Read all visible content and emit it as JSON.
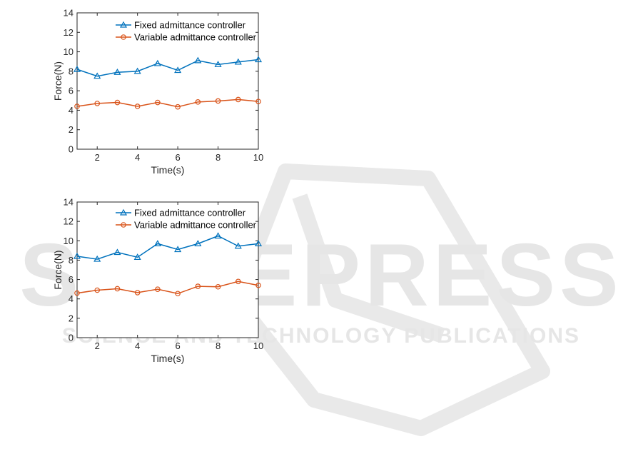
{
  "watermark": {
    "title": "SCITEPRESS",
    "subtitle": "SCIENCE AND TECHNOLOGY PUBLICATIONS",
    "color": "#e6e6e6"
  },
  "colors": {
    "fixed": "#0072bd",
    "variable": "#d95319",
    "axis": "#262626"
  },
  "chart_data": [
    {
      "type": "line",
      "xlabel": "Time(s)",
      "ylabel": "Force(N)",
      "xlim": [
        1,
        10
      ],
      "ylim": [
        0,
        14
      ],
      "xticks": [
        2,
        4,
        6,
        8,
        10
      ],
      "yticks": [
        0,
        2,
        4,
        6,
        8,
        10,
        12,
        14
      ],
      "grid": false,
      "legend_position": "top-right",
      "x": [
        1,
        2,
        3,
        4,
        5,
        6,
        7,
        8,
        9,
        10
      ],
      "series": [
        {
          "name": "Fixed admittance controller",
          "marker": "triangle",
          "values": [
            8.2,
            7.5,
            7.9,
            8.0,
            8.8,
            8.1,
            9.1,
            8.7,
            8.95,
            9.2
          ]
        },
        {
          "name": "Variable admittance controller",
          "marker": "circle",
          "values": [
            4.4,
            4.7,
            4.8,
            4.4,
            4.8,
            4.35,
            4.85,
            4.95,
            5.1,
            4.9
          ]
        }
      ]
    },
    {
      "type": "line",
      "xlabel": "Time(s)",
      "ylabel": "Force(N)",
      "xlim": [
        1,
        10
      ],
      "ylim": [
        0,
        14
      ],
      "xticks": [
        2,
        4,
        6,
        8,
        10
      ],
      "yticks": [
        0,
        2,
        4,
        6,
        8,
        10,
        12,
        14
      ],
      "grid": false,
      "legend_position": "top-right",
      "x": [
        1,
        2,
        3,
        4,
        5,
        6,
        7,
        8,
        9,
        10
      ],
      "series": [
        {
          "name": "Fixed admittance controller",
          "marker": "triangle",
          "values": [
            8.4,
            8.1,
            8.8,
            8.3,
            9.7,
            9.1,
            9.7,
            10.5,
            9.45,
            9.7
          ]
        },
        {
          "name": "Variable admittance controller",
          "marker": "circle",
          "values": [
            4.6,
            4.9,
            5.05,
            4.65,
            5.0,
            4.55,
            5.3,
            5.25,
            5.8,
            5.4
          ]
        }
      ]
    }
  ]
}
